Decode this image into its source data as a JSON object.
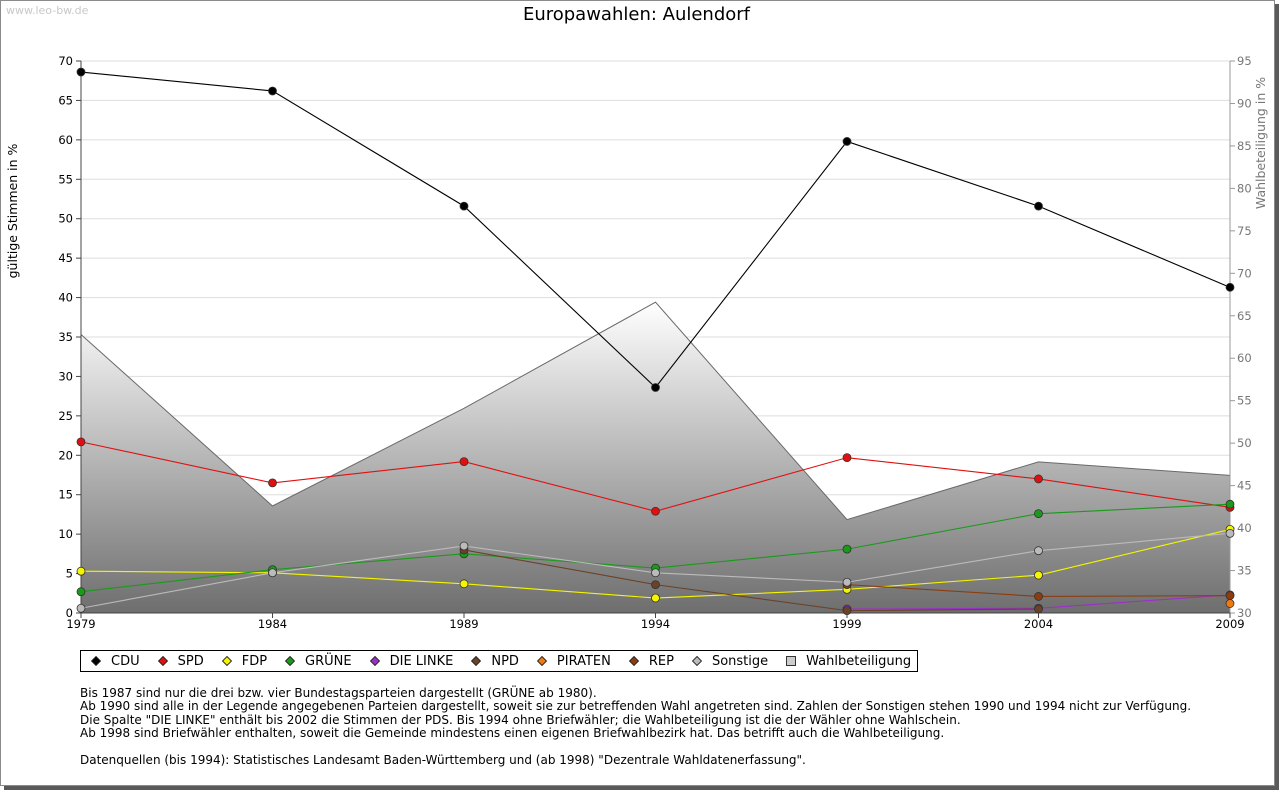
{
  "watermark": "www.leo-bw.de",
  "chart_data": {
    "type": "line",
    "title": "Europawahlen: Aulendorf",
    "ylabel": "gültige Stimmen in %",
    "y2label": "Wahlbeteiligung in %",
    "xlabel": "",
    "grid": true,
    "x": [
      "1979",
      "1984",
      "1989",
      "1994",
      "1999",
      "2004",
      "2009"
    ],
    "ylim": [
      0,
      70
    ],
    "y_ticks": [
      "0",
      "5",
      "10",
      "15",
      "20",
      "25",
      "30",
      "35",
      "40",
      "45",
      "50",
      "55",
      "60",
      "65",
      "70"
    ],
    "y2lim": [
      30,
      95
    ],
    "y2_ticks": [
      "30",
      "35",
      "40",
      "45",
      "50",
      "55",
      "60",
      "65",
      "70",
      "75",
      "80",
      "85",
      "90",
      "95"
    ],
    "series": [
      {
        "name": "CDU",
        "color": "#000000",
        "values": [
          68.6,
          66.2,
          51.6,
          28.6,
          59.8,
          51.6,
          41.3
        ]
      },
      {
        "name": "SPD",
        "color": "#e01010",
        "values": [
          21.7,
          16.5,
          19.2,
          12.9,
          19.7,
          17.0,
          13.4
        ]
      },
      {
        "name": "FDP",
        "color": "#f5f500",
        "values": [
          5.3,
          5.1,
          3.7,
          1.9,
          3.0,
          4.8,
          10.6
        ]
      },
      {
        "name": "GRÜNE",
        "color": "#1a9a1a",
        "values": [
          2.7,
          5.5,
          7.5,
          5.7,
          8.1,
          12.6,
          13.8
        ]
      },
      {
        "name": "DIE LINKE",
        "color": "#9a30c8",
        "values": [
          null,
          null,
          null,
          null,
          0.5,
          0.6,
          2.3
        ]
      },
      {
        "name": "NPD",
        "color": "#6b4226",
        "values": [
          null,
          null,
          8.0,
          3.6,
          0.3,
          0.5,
          null
        ]
      },
      {
        "name": "PIRATEN",
        "color": "#f07a10",
        "values": [
          null,
          null,
          null,
          null,
          null,
          null,
          1.2
        ]
      },
      {
        "name": "REP",
        "color": "#8b3d0f",
        "values": [
          null,
          null,
          null,
          null,
          3.6,
          2.1,
          2.2
        ]
      },
      {
        "name": "Sonstige",
        "color": "#bbbbbb",
        "values": [
          0.6,
          5.1,
          8.5,
          5.1,
          3.9,
          7.9,
          10.1
        ]
      }
    ],
    "area": {
      "name": "Wahlbeteiligung",
      "axis": "right",
      "values": [
        62.8,
        42.6,
        54.1,
        66.6,
        41.0,
        47.8,
        46.2
      ]
    }
  },
  "legend": {
    "items": [
      {
        "label": "CDU",
        "color": "#000000",
        "shape": "diamond"
      },
      {
        "label": "SPD",
        "color": "#e01010",
        "shape": "diamond"
      },
      {
        "label": "FDP",
        "color": "#f5f500",
        "shape": "diamond"
      },
      {
        "label": "GRÜNE",
        "color": "#1a9a1a",
        "shape": "diamond"
      },
      {
        "label": "DIE LINKE",
        "color": "#9a30c8",
        "shape": "diamond"
      },
      {
        "label": "NPD",
        "color": "#6b4226",
        "shape": "diamond"
      },
      {
        "label": "PIRATEN",
        "color": "#f07a10",
        "shape": "diamond"
      },
      {
        "label": "REP",
        "color": "#8b3d0f",
        "shape": "diamond"
      },
      {
        "label": "Sonstige",
        "color": "#bbbbbb",
        "shape": "diamond"
      },
      {
        "label": "Wahlbeteiligung",
        "color": "#bbbbbb",
        "shape": "square"
      }
    ]
  },
  "notes": {
    "line1": "Bis 1987 sind nur die drei bzw. vier Bundestagsparteien dargestellt (GRÜNE ab 1980).",
    "line2": "Ab 1990 sind alle in der Legende angegebenen Parteien dargestellt, soweit sie zur betreffenden Wahl angetreten sind. Zahlen der Sonstigen stehen 1990 und 1994 nicht zur Verfügung.",
    "line3": "Die Spalte \"DIE LINKE\" enthält bis 2002 die Stimmen der PDS. Bis 1994 ohne Briefwähler; die Wahlbeteiligung ist die der Wähler ohne Wahlschein.",
    "line4": "Ab 1998 sind Briefwähler enthalten, soweit die Gemeinde mindestens einen eigenen Briefwahlbezirk hat. Das betrifft auch die Wahlbeteiligung.",
    "source": "Datenquellen (bis 1994): Statistisches Landesamt Baden-Württemberg und (ab 1998) \"Dezentrale Wahldatenerfassung\"."
  }
}
